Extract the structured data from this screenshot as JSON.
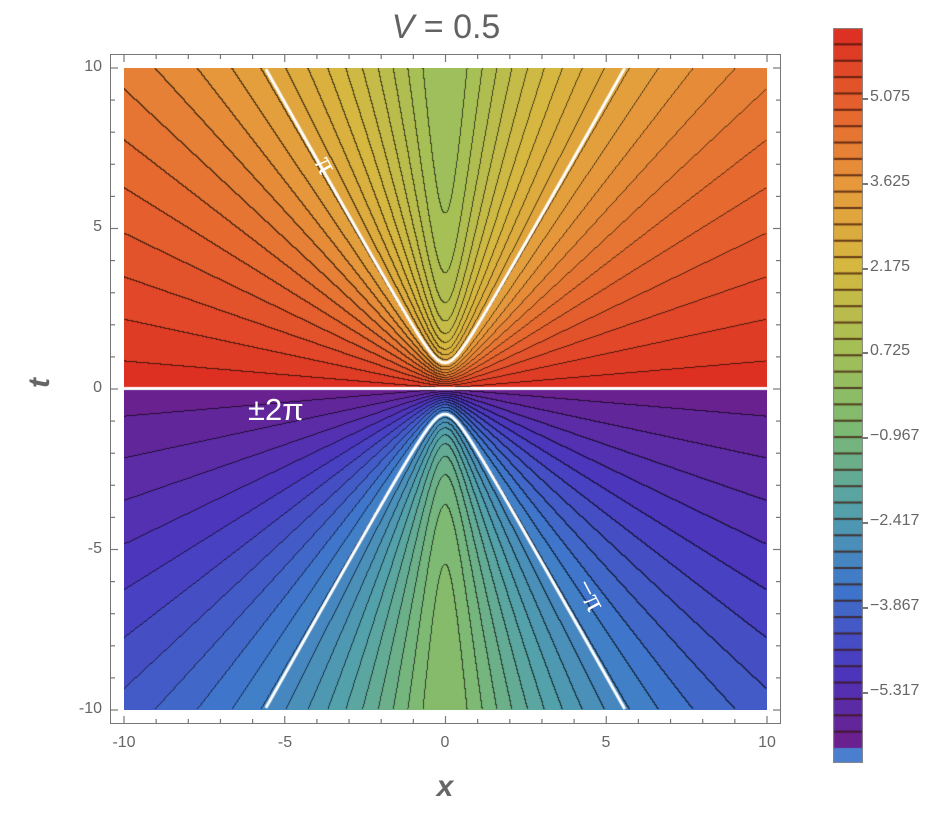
{
  "chart_data": {
    "type": "contour",
    "title": "V = 0.5",
    "title_parts": {
      "var": "V",
      "rest": " = 0.5"
    },
    "xlabel": "x",
    "ylabel": "t",
    "xlim": [
      -10,
      10
    ],
    "ylim": [
      -10,
      10
    ],
    "x_ticks": [
      "-10",
      "-5",
      "0",
      "5",
      "10"
    ],
    "y_ticks": [
      "10",
      "5",
      "0",
      "-5",
      "-10"
    ],
    "x_tick_values": [
      -10,
      -5,
      0,
      5,
      10
    ],
    "y_tick_values": [
      10,
      5,
      0,
      -5,
      -10
    ],
    "contour_spacing": 0.29,
    "highlighted_contours": [
      {
        "label": "π",
        "value": 3.14159,
        "position": "upper branch, left arm near x≈-3.4, t≈7.6"
      },
      {
        "label": "−π",
        "value": -3.14159,
        "position": "lower branch, right arm near x≈4.6, t≈-6.5"
      },
      {
        "label": "±2π",
        "value": 6.28318,
        "position": "t = 0 line"
      }
    ],
    "pi_contour_apex": {
      "upper": [
        0,
        0.8
      ],
      "lower": [
        0,
        -0.8
      ]
    },
    "pi_contour_at_edge": {
      "t": 10,
      "x": [
        -5.6,
        5.6
      ]
    },
    "colorbar": {
      "tick_labels": [
        "5.075",
        "3.625",
        "2.175",
        "0.725",
        "−0.967",
        "−2.417",
        "−3.867",
        "−5.317"
      ],
      "tick_values": [
        5.075,
        3.625,
        2.175,
        0.725,
        -0.967,
        -2.417,
        -3.867,
        -5.317
      ],
      "range": [
        -6.4,
        6.4
      ],
      "colors_top_to_bottom": [
        "#dc2a22",
        "#e6622e",
        "#e69a3c",
        "#d6b840",
        "#a6c055",
        "#7eba72",
        "#54a2aa",
        "#3e78cc",
        "#4a38c0",
        "#6e1e8a"
      ],
      "out_of_range_color": "#4a7fd0"
    },
    "region_colors": {
      "upper_outer": "#dc2a22",
      "lower_outer": "#6e1c88",
      "center": "#80ba6e"
    },
    "grid": false,
    "legend_position": "right colorbar"
  },
  "annotations": {
    "pi": "π",
    "minus_pi": "−π",
    "pm_two_pi": "±2π"
  }
}
